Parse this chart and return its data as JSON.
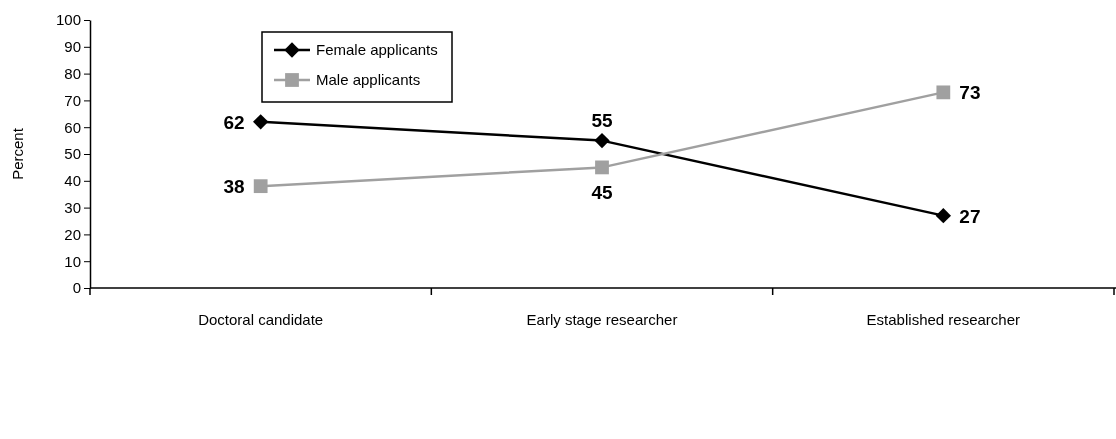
{
  "chart_data": {
    "type": "line",
    "ylabel": "Percent",
    "categories": [
      "Doctoral candidate",
      "Early stage researcher",
      "Established researcher"
    ],
    "series": [
      {
        "name": "Female applicants",
        "color": "#000000",
        "values": [
          62,
          55,
          27
        ],
        "marker": "diamond"
      },
      {
        "name": "Male applicants",
        "color": "#a0a0a0",
        "values": [
          38,
          45,
          73
        ],
        "marker": "square"
      }
    ],
    "ylim": [
      0,
      100
    ],
    "yticks": [
      0,
      10,
      20,
      30,
      40,
      50,
      60,
      70,
      80,
      90,
      100
    ],
    "grid": false,
    "legend": "top left",
    "data_labels": true,
    "line_style": "solid"
  }
}
